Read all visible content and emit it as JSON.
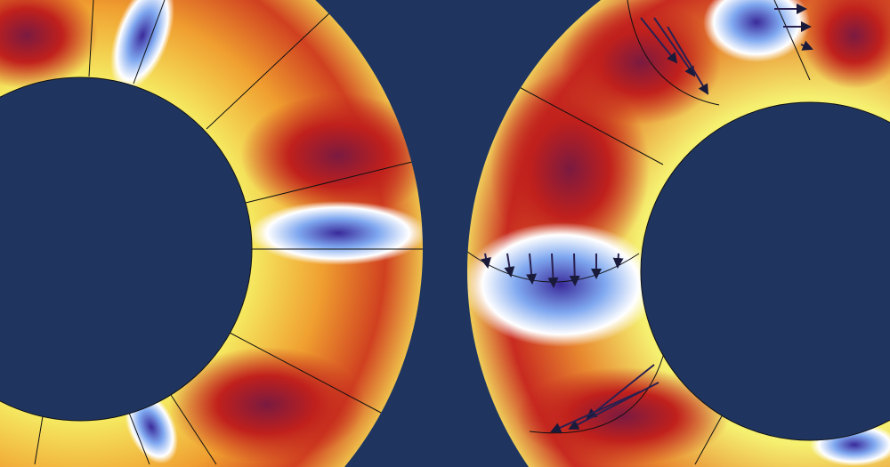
{
  "colors": {
    "background": "#1f3560",
    "hot_low": "#f7f06a",
    "hot_mid": "#f0a030",
    "hot_high": "#c0201c",
    "hot_peak": "#7a1a40",
    "cold_edge": "#ffffff",
    "cold_mid": "#7fa8f0",
    "cold_peak": "#3a2a9a",
    "mesh_line": "#111111"
  },
  "scene": {
    "annuli": [
      {
        "id": "left-ring"
      },
      {
        "id": "right-ring"
      }
    ],
    "icons": [
      "arrow-field-icon"
    ]
  }
}
